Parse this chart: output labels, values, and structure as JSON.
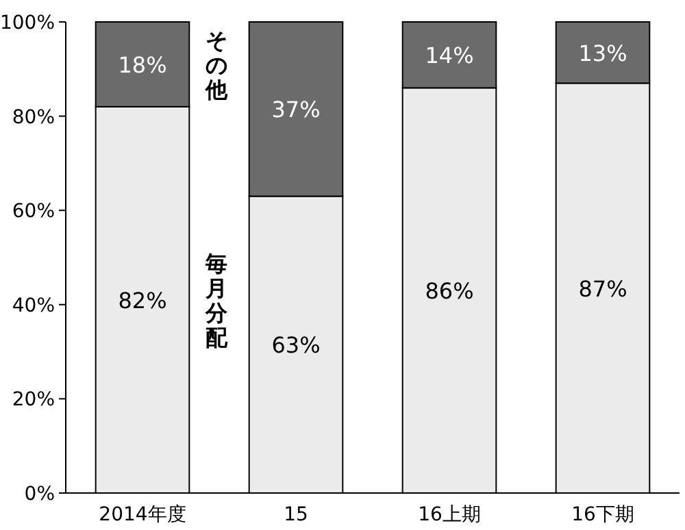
{
  "chart_data": {
    "type": "bar",
    "stacked": true,
    "categories": [
      "2014年度",
      "15",
      "16上期",
      "16下期"
    ],
    "series": [
      {
        "name": "毎月分配",
        "color": "#ebebeb",
        "values": [
          82,
          63,
          86,
          87
        ],
        "value_labels": [
          "82%",
          "63%",
          "86%",
          "87%"
        ]
      },
      {
        "name": "その他",
        "color": "#6b6b6b",
        "values": [
          18,
          37,
          14,
          13
        ],
        "value_labels": [
          "18%",
          "37%",
          "14%",
          "13%"
        ]
      }
    ],
    "ylim": [
      0,
      100
    ],
    "yticks": [
      {
        "value": 0,
        "label": "0%"
      },
      {
        "value": 20,
        "label": "20%"
      },
      {
        "value": 40,
        "label": "40%"
      },
      {
        "value": 60,
        "label": "60%"
      },
      {
        "value": 80,
        "label": "80%"
      },
      {
        "value": 100,
        "label": "100%"
      }
    ]
  }
}
